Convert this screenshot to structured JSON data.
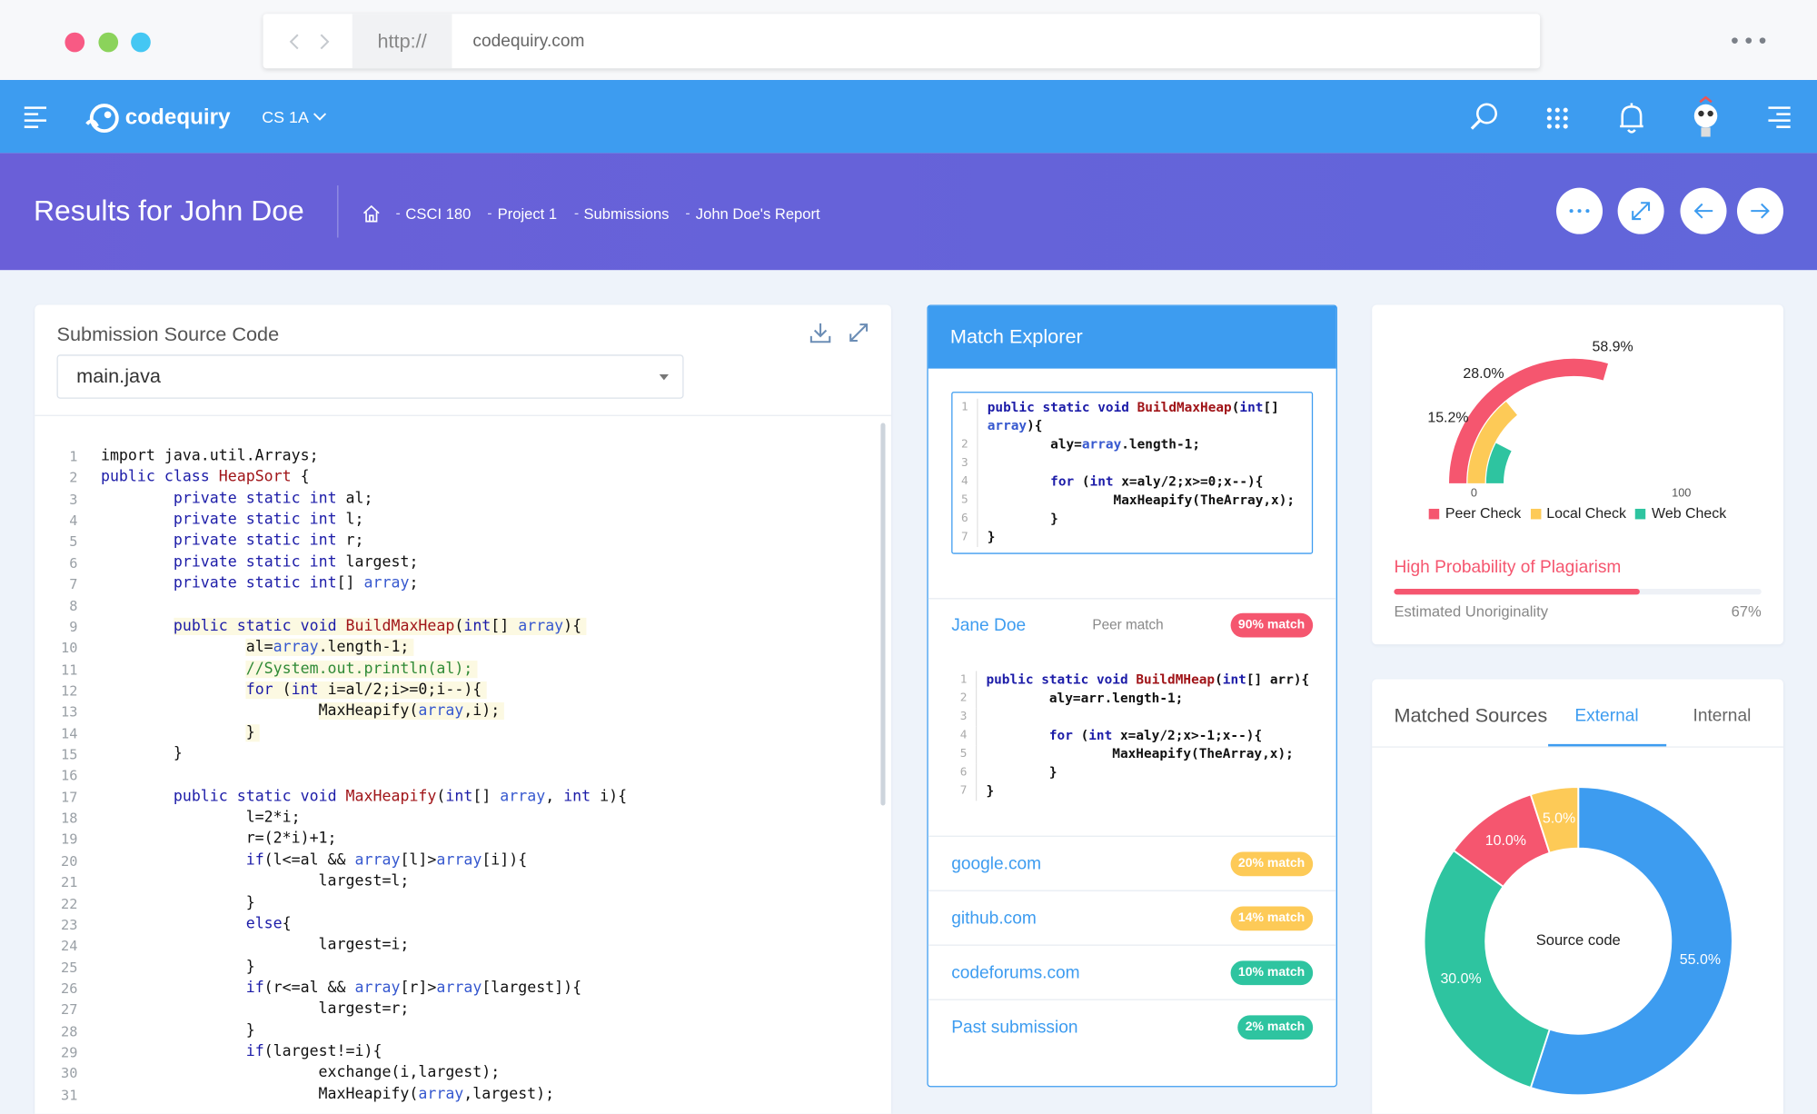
{
  "browser": {
    "scheme": "http://",
    "url": "codequiry.com"
  },
  "nav": {
    "brand": "codequiry",
    "course": "CS 1A"
  },
  "header": {
    "title": "Results for John Doe",
    "breadcrumbs": [
      "CSCI 180",
      "Project 1",
      "Submissions",
      "John Doe's Report"
    ]
  },
  "source": {
    "title": "Submission Source Code",
    "file": "main.java",
    "highlighted_lines": [
      9,
      10,
      11,
      12,
      13,
      14
    ],
    "lines": [
      {
        "n": 1,
        "text": "import java.util.Arrays;"
      },
      {
        "n": 2,
        "text": "public class HeapSort {"
      },
      {
        "n": 3,
        "text": "        private static int al;"
      },
      {
        "n": 4,
        "text": "        private static int l;"
      },
      {
        "n": 5,
        "text": "        private static int r;"
      },
      {
        "n": 6,
        "text": "        private static int largest;"
      },
      {
        "n": 7,
        "text": "        private static int[] array;"
      },
      {
        "n": 8
      },
      {
        "n": 9,
        "text": "        public static void BuildMaxHeap(int[] array){"
      },
      {
        "n": 10,
        "text": "                al=array.length-1;"
      },
      {
        "n": 11,
        "text": "                //System.out.println(al);"
      },
      {
        "n": 12,
        "text": "                for (int i=al/2;i>=0;i--){"
      },
      {
        "n": 13,
        "text": "                        MaxHeapify(array,i);"
      },
      {
        "n": 14,
        "text": "                }"
      },
      {
        "n": 15,
        "text": "        }"
      },
      {
        "n": 16
      },
      {
        "n": 17,
        "text": "        public static void MaxHeapify(int[] array, int i){"
      },
      {
        "n": 18,
        "text": "                l=2*i;"
      },
      {
        "n": 19,
        "text": "                r=(2*i)+1;"
      },
      {
        "n": 20,
        "text": "                if(l<=al && array[l]>array[i]){"
      },
      {
        "n": 21,
        "text": "                        largest=l;"
      },
      {
        "n": 22,
        "text": "                }"
      },
      {
        "n": 23,
        "text": "                else{"
      },
      {
        "n": 24,
        "text": "                        largest=i;"
      },
      {
        "n": 25,
        "text": "                }"
      },
      {
        "n": 26,
        "text": "                if(r<=al && array[r]>array[largest]){"
      },
      {
        "n": 27,
        "text": "                        largest=r;"
      },
      {
        "n": 28,
        "text": "                }"
      },
      {
        "n": 29,
        "text": "                if(largest!=i){"
      },
      {
        "n": 30,
        "text": "                        exchange(i,largest);"
      },
      {
        "n": 31,
        "text": "                        MaxHeapify(array,largest);"
      }
    ]
  },
  "match_explorer": {
    "title": "Match Explorer",
    "query_snippet": [
      {
        "n": 1,
        "text": "public static void BuildMaxHeap(int[] array){"
      },
      {
        "n": 2,
        "text": "        aly=array.length-1;"
      },
      {
        "n": 3
      },
      {
        "n": 4,
        "text": "        for (int x=aly/2;x>=0;x--){"
      },
      {
        "n": 5,
        "text": "                MaxHeapify(TheArray,x);"
      },
      {
        "n": 6,
        "text": "        }"
      },
      {
        "n": 7,
        "text": "}"
      }
    ],
    "matches": [
      {
        "name": "Jane Doe",
        "kind": "Peer match",
        "badge": "90% match",
        "color": "#f5566f",
        "snippet": [
          {
            "n": 1,
            "text": "public static void BuildMHeap(int[] arr){"
          },
          {
            "n": 2,
            "text": "        aly=arr.length-1;"
          },
          {
            "n": 3
          },
          {
            "n": 4,
            "text": "        for (int x=aly/2;x>-1;x--){"
          },
          {
            "n": 5,
            "text": "                MaxHeapify(TheArray,x);"
          },
          {
            "n": 6,
            "text": "        }"
          },
          {
            "n": 7,
            "text": "}"
          }
        ]
      },
      {
        "name": "google.com",
        "badge": "20% match",
        "color": "#fdca57"
      },
      {
        "name": "github.com",
        "badge": "14% match",
        "color": "#fdca57"
      },
      {
        "name": "codeforums.com",
        "badge": "10% match",
        "color": "#2ec4a0"
      },
      {
        "name": "Past submission",
        "badge": "2% match",
        "color": "#2ec4a0"
      }
    ]
  },
  "gauge": {
    "lim": [
      0,
      100
    ],
    "ticks": [
      0,
      100
    ],
    "series": [
      {
        "name": "Peer Check",
        "color": "#f5566f",
        "value": 58.9,
        "value_label": "58.9%"
      },
      {
        "name": "Local Check",
        "color": "#fdca57",
        "value": 28.0,
        "value_label": "28.0%"
      },
      {
        "name": "Web Check",
        "color": "#2ec4a0",
        "value": 15.2,
        "value_label": "15.2%"
      }
    ],
    "verdict": "High Probability of Plagiarism",
    "metric": {
      "name": "Estimated Unoriginality",
      "value": 67,
      "value_label": "67%"
    }
  },
  "sources": {
    "title": "Matched Sources",
    "tabs": [
      "External",
      "Internal"
    ],
    "active_tab": 0,
    "donut": {
      "center_label": "Source code",
      "slices": [
        {
          "value": 55.0,
          "value_label": "55.0%",
          "color": "#3d9cf0"
        },
        {
          "value": 30.0,
          "value_label": "30.0%",
          "color": "#2ec4a0"
        },
        {
          "value": 10.0,
          "value_label": "10.0%",
          "color": "#f5566f"
        },
        {
          "value": 5.0,
          "value_label": "5.0%",
          "color": "#fdca57"
        }
      ]
    }
  }
}
